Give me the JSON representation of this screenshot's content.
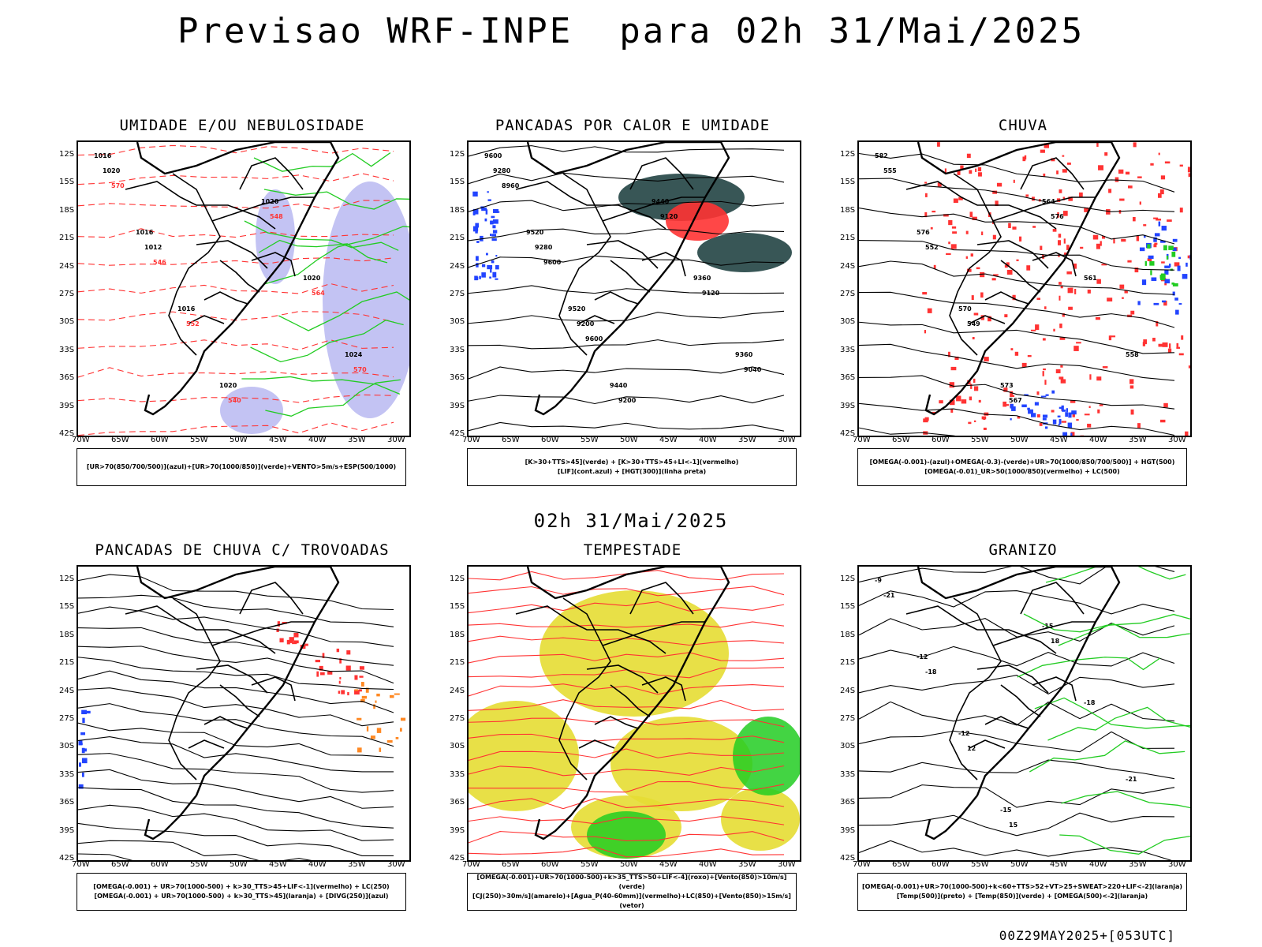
{
  "title": "Previsao WRF-INPE  para 02h 31/Mai/2025",
  "mid_title": "02h 31/Mai/2025",
  "footer": "00Z29MAY2025+[053UTC]",
  "lat_labels": [
    "12S",
    "15S",
    "18S",
    "21S",
    "24S",
    "27S",
    "30S",
    "33S",
    "36S",
    "39S",
    "42S"
  ],
  "lon_labels": [
    "70W",
    "65W",
    "60W",
    "55W",
    "50W",
    "45W",
    "40W",
    "35W",
    "30W"
  ],
  "colors": {
    "green": "#22cc22",
    "red": "#ff3333",
    "blue": "#2244ff",
    "lavender": "#aaaaee",
    "yellow": "#e6dd33",
    "orange": "#ff8822",
    "teal": "#224444"
  },
  "panels": [
    {
      "title": "UMIDADE E/OU NEBULOSIDADE",
      "legend": [
        "[UR>70(850/700/500)](azul)+[UR>70(1000/850)](verde)+VENTO>5m/s+ESP(500/1000)"
      ],
      "contours": [
        "1016",
        "1016",
        "1016",
        "1020",
        "1020",
        "1020",
        "1024",
        "1020",
        "1012",
        "552",
        "540",
        "548",
        "564",
        "570",
        "570",
        "546"
      ]
    },
    {
      "title": "PANCADAS POR CALOR E UMIDADE",
      "legend": [
        "[K>30+TTS>45](verde) + [K>30+TTS>45+LI<-1](vermelho)",
        "[LIF](cont.azul) + [HGT(300)](linha preta)"
      ],
      "contours": [
        "9600",
        "9520",
        "9520",
        "9440",
        "9440",
        "9360",
        "9360",
        "9280",
        "9280",
        "9200",
        "9200",
        "9120",
        "9120",
        "9040",
        "8960",
        "9600",
        "9600"
      ]
    },
    {
      "title": "CHUVA",
      "legend": [
        "[OMEGA(-0.001)-(azul)+OMEGA(-0.3)-(verde)+UR>70(1000/850/700/500)] + HGT(500)",
        "[OMEGA(-0.01)_UR>50(1000/850)(vermelho) + LC(500)"
      ],
      "contours": [
        "582",
        "576",
        "570",
        "573",
        "564",
        "561",
        "558",
        "555",
        "552",
        "549",
        "567",
        "576"
      ]
    },
    {
      "title": "PANCADAS DE CHUVA C/ TROVOADAS",
      "legend": [
        "[OMEGA(-0.001) + UR>70(1000-500) + k>30_TTS>45+LIF<-1](vermelho) + LC(250)",
        "[OMEGA(-0.001) + UR>70(1000-500) + k>30_TTS>45](laranja) + [DIVG(250)](azul)"
      ],
      "contours": []
    },
    {
      "title": "TEMPESTADE",
      "legend": [
        "[OMEGA(-0.001)+UR>70(1000-500)+k>35_TTS>50+LIF<-4](roxo)+[Vento(850)>10m/s](verde)",
        "[CJ(250)>30m/s](amarelo)+[Agua_P(40-60mm)](vermelho)+LC(850)+[Vento(850)>15m/s](vetor)"
      ],
      "contours": []
    },
    {
      "title": "GRANIZO",
      "legend": [
        "[OMEGA(-0.001)+UR>70(1000-500)+k<60+TTS>52+VT>25+SWEAT>220+LIF<-2](laranja)",
        "[Temp(500)](preto) + [Temp(850)](verde) + [OMEGA(500)<-2](laranja)"
      ],
      "contours": [
        "-9",
        "-12",
        "-12",
        "-15",
        "-15",
        "-18",
        "-21",
        "-21",
        "-18",
        "12",
        "15",
        "18"
      ]
    }
  ]
}
